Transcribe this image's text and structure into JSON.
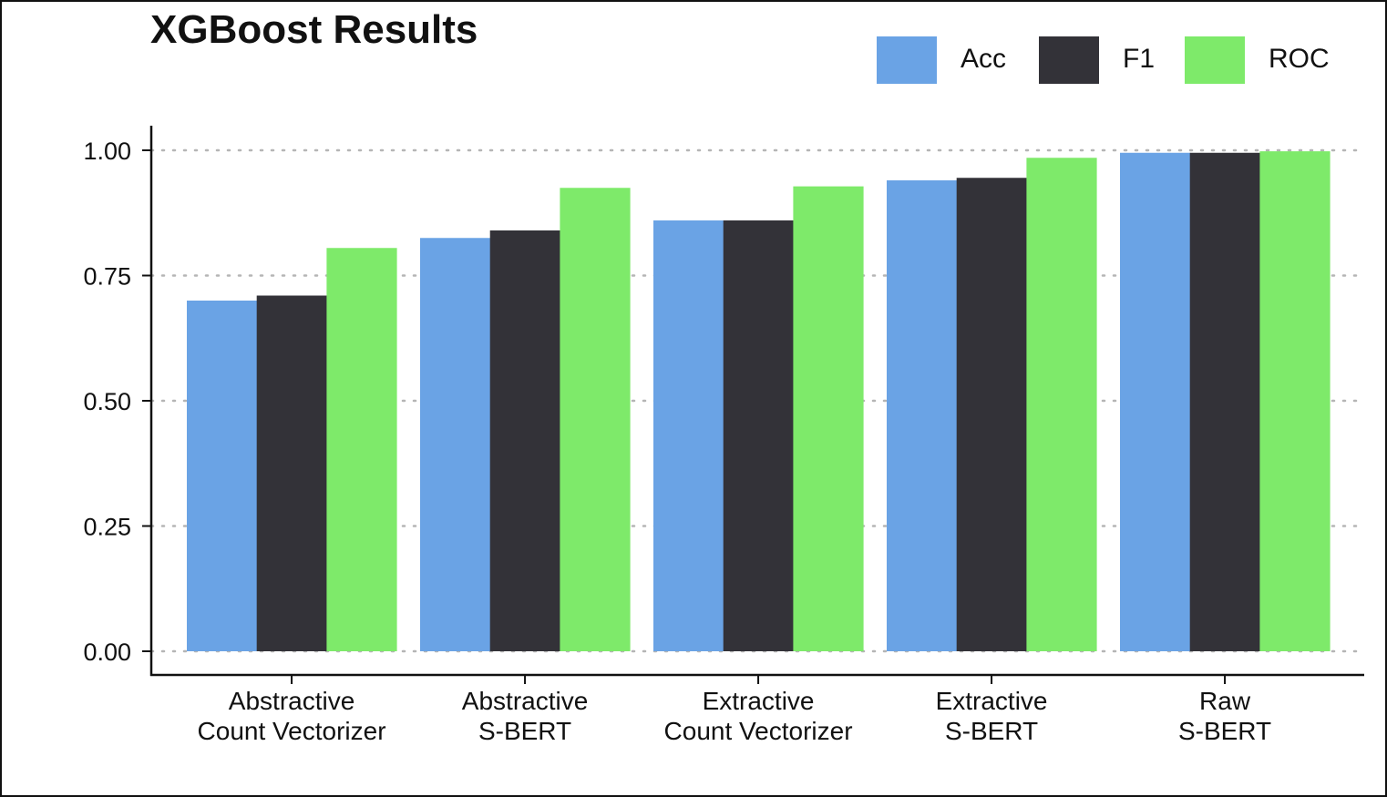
{
  "chart_data": {
    "type": "bar",
    "title": "XGBoost Results",
    "categories": [
      [
        "Abstractive",
        "Count Vectorizer"
      ],
      [
        "Abstractive",
        "S-BERT"
      ],
      [
        "Extractive",
        "Count Vectorizer"
      ],
      [
        "Extractive",
        "S-BERT"
      ],
      [
        "Raw",
        "S-BERT"
      ]
    ],
    "series": [
      {
        "name": "Acc",
        "color": "#6aa3e5",
        "values": [
          0.7,
          0.825,
          0.86,
          0.94,
          0.995
        ]
      },
      {
        "name": "F1",
        "color": "#333238",
        "values": [
          0.71,
          0.84,
          0.86,
          0.945,
          0.995
        ]
      },
      {
        "name": "ROC",
        "color": "#7eea6a",
        "values": [
          0.805,
          0.925,
          0.928,
          0.985,
          0.998
        ]
      }
    ],
    "ylim": [
      0,
      1
    ],
    "yticks": [
      "0.00",
      "0.25",
      "0.50",
      "0.75",
      "1.00"
    ],
    "grid": "horizontal dotted",
    "legend_position": "top-right",
    "xlabel": "",
    "ylabel": ""
  }
}
